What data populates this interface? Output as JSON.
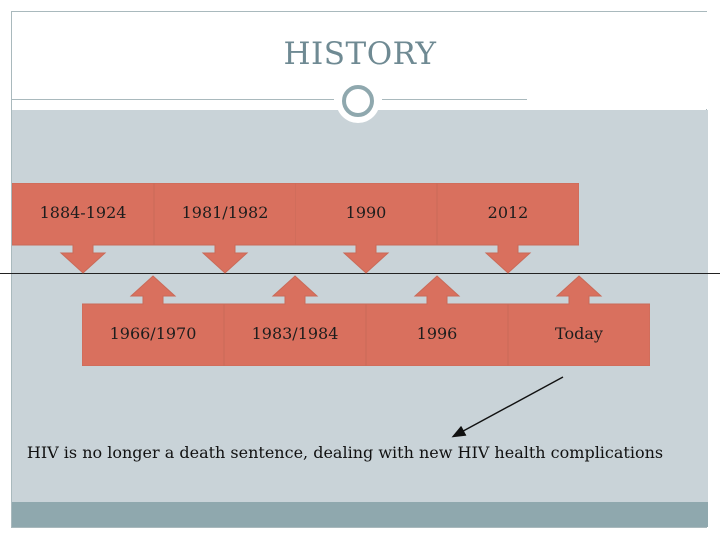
{
  "slide": {
    "title": "HISTORY",
    "caption": "HIV is no longer a death sentence, dealing with new HIV health complications"
  },
  "timeline": {
    "above": [
      {
        "label": "1884-1924"
      },
      {
        "label": "1981/1982"
      },
      {
        "label": "1990"
      },
      {
        "label": "2012"
      }
    ],
    "below": [
      {
        "label": "1966/1970"
      },
      {
        "label": "1983/1984"
      },
      {
        "label": "1996"
      },
      {
        "label": "Today"
      }
    ]
  },
  "colors": {
    "callout_fill": "#d9705e",
    "callout_stroke": "#c96a58",
    "panel": "#c9d3d8",
    "accent": "#8fa8ae",
    "title": "#6f8a93"
  }
}
